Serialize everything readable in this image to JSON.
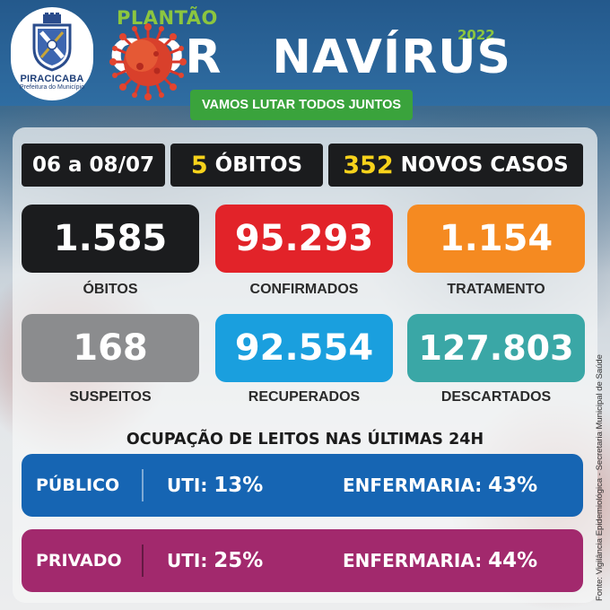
{
  "header": {
    "logo_name": "PIRACICABA",
    "logo_subtitle": "Prefeitura do Município",
    "kicker": "PLANTÃO",
    "title_left": "COR",
    "title_right": "NAVÍRUS",
    "year": "2022",
    "slogan": "VAMOS LUTAR TODOS JUNTOS"
  },
  "summary": {
    "period": "06 a 08/07",
    "deaths_value": "5",
    "deaths_label": "ÓBITOS",
    "new_cases_value": "352",
    "new_cases_label": "NOVOS CASOS"
  },
  "stats": {
    "obitos": {
      "value": "1.585",
      "label": "ÓBITOS",
      "color": "#1b1c1e"
    },
    "confirmados": {
      "value": "95.293",
      "label": "CONFIRMADOS",
      "color": "#e22329"
    },
    "tratamento": {
      "value": "1.154",
      "label": "TRATAMENTO",
      "color": "#f58a21"
    },
    "suspeitos": {
      "value": "168",
      "label": "SUSPEITOS",
      "color": "#8b8c8e"
    },
    "recuperados": {
      "value": "92.554",
      "label": "RECUPERADOS",
      "color": "#1a9fde"
    },
    "descartados": {
      "value": "127.803",
      "label": "DESCARTADOS",
      "color": "#3aa7a6"
    }
  },
  "beds": {
    "title": "OCUPAÇÃO DE LEITOS NAS ÚLTIMAS 24H",
    "uti_label": "UTI:",
    "enfermaria_label": "ENFERMARIA:",
    "publico": {
      "name": "PÚBLICO",
      "uti": "13%",
      "enfermaria": "43%",
      "color": "#1665b3"
    },
    "privado": {
      "name": "PRIVADO",
      "uti": "25%",
      "enfermaria": "44%",
      "color": "#a2296d"
    }
  },
  "source": "Fonte: Vigilância Epidemiológica - Secretaria Municipal de Saúde",
  "colors": {
    "accent_green": "#8cc63f",
    "highlight_yellow": "#f7d21b",
    "header_blue": "#24598c"
  }
}
